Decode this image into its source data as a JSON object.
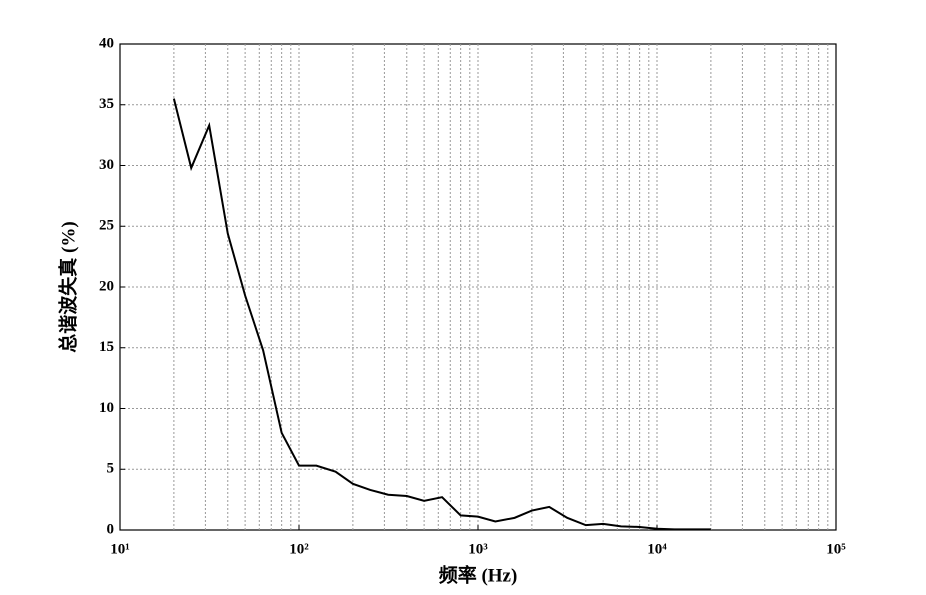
{
  "chart_data": {
    "type": "line",
    "xlabel": "频率 (Hz)",
    "ylabel": "总谐波失真 (%)",
    "x": [
      20,
      25,
      31.5,
      40,
      50,
      63,
      80,
      100,
      125,
      160,
      200,
      250,
      315,
      400,
      500,
      630,
      800,
      1000,
      1250,
      1600,
      2000,
      2500,
      3150,
      4000,
      5000,
      6300,
      8000,
      10000,
      12500,
      16000,
      20000
    ],
    "values": [
      35.5,
      29.8,
      33.3,
      24.4,
      19.3,
      14.8,
      8.0,
      5.3,
      5.3,
      4.8,
      3.8,
      3.3,
      2.9,
      2.8,
      2.4,
      2.7,
      1.2,
      1.1,
      0.7,
      1.0,
      1.6,
      1.9,
      1.0,
      0.4,
      0.5,
      0.3,
      0.25,
      0.1,
      0.05,
      0.05,
      0.05
    ],
    "color": "#000000",
    "xscale": "log",
    "xlim": [
      10,
      100000
    ],
    "xticks": [
      {
        "value": 10,
        "label": "10¹"
      },
      {
        "value": 100,
        "label": "10²"
      },
      {
        "value": 1000,
        "label": "10³"
      },
      {
        "value": 10000,
        "label": "10⁴"
      },
      {
        "value": 100000,
        "label": "10⁵"
      }
    ],
    "ylim": [
      0,
      40
    ],
    "yticks": [
      0,
      5,
      10,
      15,
      20,
      25,
      30,
      35,
      40
    ],
    "grid": true
  }
}
